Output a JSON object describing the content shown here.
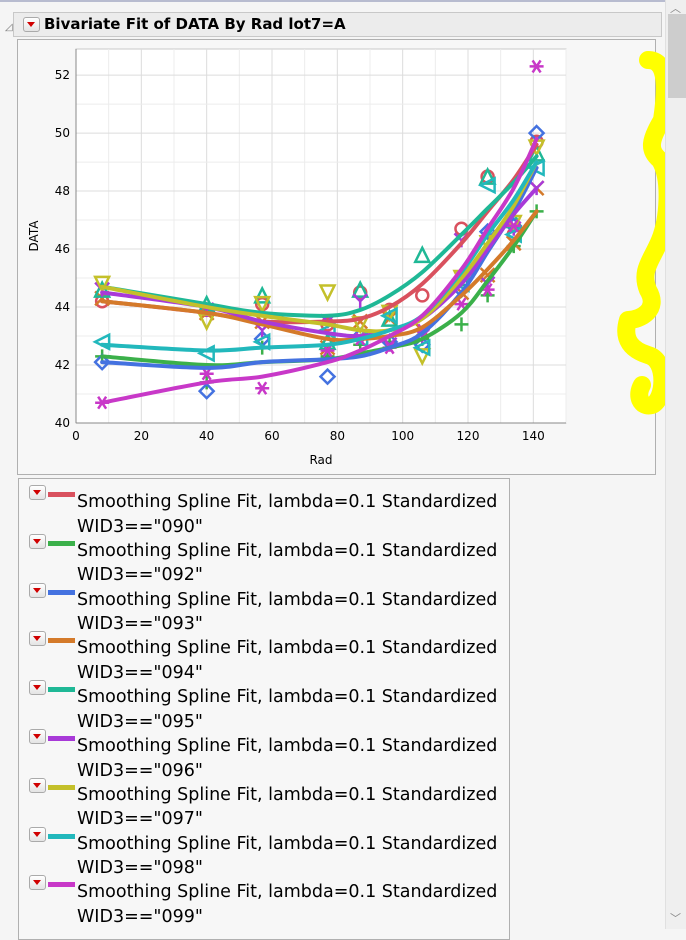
{
  "header": {
    "title": "Bivariate Fit of DATA By Rad lot7=A"
  },
  "chart_data": {
    "type": "scatter",
    "xlabel": "Rad",
    "ylabel": "DATA",
    "xlim": [
      0,
      150
    ],
    "ylim": [
      40,
      52.9
    ],
    "xticks": [
      0,
      20,
      40,
      60,
      80,
      100,
      120,
      140
    ],
    "yticks": [
      40,
      42,
      44,
      46,
      48,
      50,
      52
    ],
    "grid": true,
    "x": [
      8,
      40,
      57,
      77,
      87,
      96,
      106,
      118,
      126,
      134,
      141
    ],
    "series": [
      {
        "name": "Smoothing Spline Fit, lambda=0.1 Standardized WID3==\"090\"",
        "color": "#d9515e",
        "marker": "circle",
        "points": [
          44.2,
          43.9,
          44.1,
          43.4,
          44.5,
          43.9,
          44.4,
          46.7,
          48.5,
          46.5,
          49.7
        ],
        "fit": [
          44.2,
          43.8,
          43.5,
          43.5,
          43.6,
          44.0,
          44.8,
          46.2,
          47.3,
          48.4,
          49.6
        ]
      },
      {
        "name": "Smoothing Spline Fit, lambda=0.1 Standardized WID3==\"092\"",
        "color": "#3bb04a",
        "marker": "plus",
        "points": [
          42.3,
          41.4,
          42.6,
          42.3,
          42.7,
          42.8,
          42.9,
          43.4,
          44.4,
          46.1,
          47.3
        ],
        "fit": [
          42.3,
          42.0,
          42.1,
          42.2,
          42.4,
          42.6,
          42.9,
          43.8,
          44.9,
          46.1,
          47.3
        ]
      },
      {
        "name": "Smoothing Spline Fit, lambda=0.1 Standardized WID3==\"093\"",
        "color": "#4472e0",
        "marker": "diamond",
        "points": [
          42.1,
          41.1,
          42.9,
          41.6,
          43.0,
          42.8,
          42.7,
          44.6,
          46.6,
          46.8,
          50.0
        ],
        "fit": [
          42.1,
          41.9,
          42.1,
          42.2,
          42.3,
          42.6,
          43.1,
          44.5,
          45.9,
          47.3,
          48.8
        ]
      },
      {
        "name": "Smoothing Spline Fit, lambda=0.1 Standardized WID3==\"094\"",
        "color": "#d47a2a",
        "marker": "x",
        "points": [
          44.3,
          43.8,
          43.5,
          42.6,
          43.5,
          43.6,
          43.2,
          44.5,
          45.1,
          46.2,
          48.1
        ],
        "fit": [
          44.2,
          43.8,
          43.4,
          42.9,
          42.9,
          43.0,
          43.3,
          44.4,
          45.3,
          46.3,
          47.3
        ]
      },
      {
        "name": "Smoothing Spline Fit, lambda=0.1 Standardized WID3==\"095\"",
        "color": "#1fb896",
        "marker": "triangle-up",
        "points": [
          44.6,
          44.1,
          44.4,
          42.8,
          44.6,
          43.6,
          45.8,
          45.0,
          48.5,
          47.0,
          49.3
        ],
        "fit": [
          44.7,
          44.1,
          43.8,
          43.7,
          43.9,
          44.4,
          45.2,
          46.5,
          47.4,
          48.3,
          49.2
        ]
      },
      {
        "name": "Smoothing Spline Fit, lambda=0.1 Standardized WID3==\"096\"",
        "color": "#a83ad8",
        "marker": "y",
        "points": [
          44.6,
          43.9,
          43.2,
          43.5,
          44.2,
          42.7,
          43.0,
          46.3,
          44.8,
          46.7,
          48.1
        ],
        "fit": [
          44.5,
          44.0,
          43.5,
          43.1,
          43.0,
          43.2,
          43.6,
          44.8,
          46.0,
          47.2,
          48.1
        ]
      },
      {
        "name": "Smoothing Spline Fit, lambda=0.1 Standardized WID3==\"097\"",
        "color": "#c4c02a",
        "marker": "triangle-down",
        "points": [
          44.8,
          43.5,
          44.1,
          44.5,
          43.4,
          43.8,
          42.3,
          45.0,
          46.2,
          46.9,
          49.5
        ],
        "fit": [
          44.7,
          44.0,
          43.7,
          43.4,
          43.2,
          43.2,
          43.6,
          45.0,
          46.2,
          47.5,
          49.0
        ]
      },
      {
        "name": "Smoothing Spline Fit, lambda=0.1 Standardized WID3==\"098\"",
        "color": "#22b8bc",
        "marker": "triangle-left",
        "points": [
          42.8,
          42.4,
          42.8,
          43.2,
          42.9,
          43.7,
          42.6,
          44.8,
          48.2,
          46.5,
          48.8
        ],
        "fit": [
          42.7,
          42.5,
          42.6,
          42.7,
          42.9,
          43.2,
          43.7,
          45.2,
          46.5,
          47.7,
          49.0
        ]
      },
      {
        "name": "Smoothing Spline Fit, lambda=0.1 Standardized WID3==\"099\"",
        "color": "#c838c8",
        "marker": "asterisk",
        "points": [
          40.7,
          41.7,
          41.2,
          42.5,
          42.9,
          42.6,
          43.2,
          44.1,
          44.6,
          46.8,
          52.3
        ],
        "fit": [
          40.7,
          41.4,
          41.6,
          42.1,
          42.5,
          43.0,
          43.7,
          45.3,
          46.7,
          48.1,
          49.8
        ]
      }
    ]
  },
  "legend": {
    "items": [
      {
        "line1": "Smoothing Spline Fit, lambda=0.1 Standardized",
        "line2": "WID3==\"090\"",
        "color": "#d9515e"
      },
      {
        "line1": "Smoothing Spline Fit, lambda=0.1 Standardized",
        "line2": "WID3==\"092\"",
        "color": "#3bb04a"
      },
      {
        "line1": "Smoothing Spline Fit, lambda=0.1 Standardized",
        "line2": "WID3==\"093\"",
        "color": "#4472e0"
      },
      {
        "line1": "Smoothing Spline Fit, lambda=0.1 Standardized",
        "line2": "WID3==\"094\"",
        "color": "#d47a2a"
      },
      {
        "line1": "Smoothing Spline Fit, lambda=0.1 Standardized",
        "line2": "WID3==\"095\"",
        "color": "#1fb896"
      },
      {
        "line1": "Smoothing Spline Fit, lambda=0.1 Standardized",
        "line2": "WID3==\"096\"",
        "color": "#a83ad8"
      },
      {
        "line1": "Smoothing Spline Fit, lambda=0.1 Standardized",
        "line2": "WID3==\"097\"",
        "color": "#c4c02a"
      },
      {
        "line1": "Smoothing Spline Fit, lambda=0.1 Standardized",
        "line2": "WID3==\"098\"",
        "color": "#22b8bc"
      },
      {
        "line1": "Smoothing Spline Fit, lambda=0.1 Standardized",
        "line2": "WID3==\"099\"",
        "color": "#c838c8"
      }
    ]
  },
  "annotation": {
    "highlight_color": "#ffff00"
  }
}
